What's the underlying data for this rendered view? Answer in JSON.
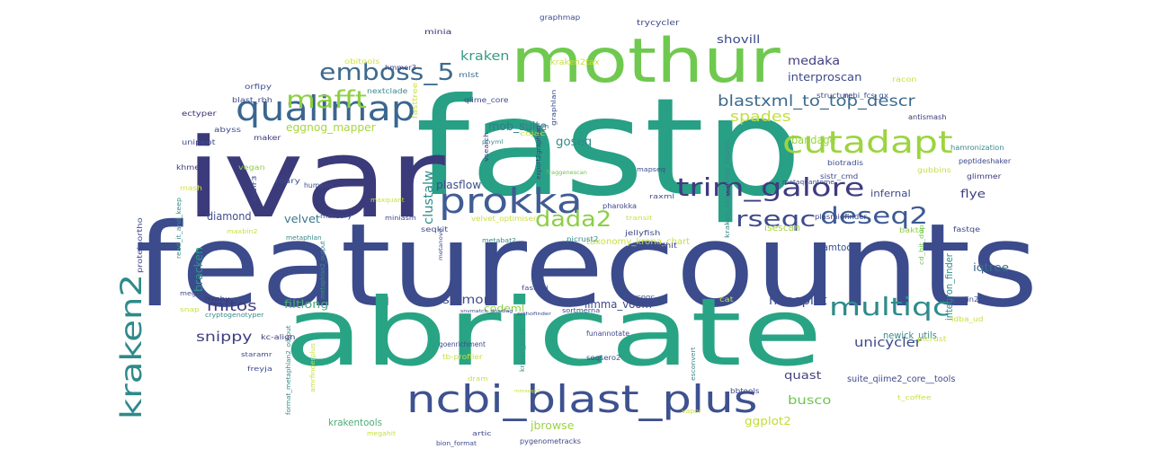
{
  "words": [
    {
      "text": "featurecounts",
      "color": "#3b4b8c"
    },
    {
      "text": "fastp",
      "color": "#27a085"
    },
    {
      "text": "ivar",
      "color": "#3b3a7a"
    },
    {
      "text": "abricate",
      "color": "#28a484"
    },
    {
      "text": "mothur",
      "color": "#6fc94f"
    },
    {
      "text": "ncbi_blast_plus",
      "color": "#3e5190"
    },
    {
      "text": "qualimap",
      "color": "#3a6690"
    },
    {
      "text": "prokka",
      "color": "#405c94"
    },
    {
      "text": "cutadapt",
      "color": "#9cd440"
    },
    {
      "text": "kraken2",
      "color": "#2e8a8a"
    },
    {
      "text": "trim_galore",
      "color": "#3f3b80"
    },
    {
      "text": "emboss_5",
      "color": "#3e6a8e"
    },
    {
      "text": "mafft",
      "color": "#8ecf43"
    },
    {
      "text": "dada2",
      "color": "#8dcf45"
    },
    {
      "text": "multiqc",
      "color": "#2e8b8a"
    },
    {
      "text": "deseq2",
      "color": "#3c5a94"
    },
    {
      "text": "rseqc",
      "color": "#3f4a8c"
    },
    {
      "text": "blastxml_to_top_descr",
      "color": "#3d6b8f"
    },
    {
      "text": "spades",
      "color": "#c4de3a"
    },
    {
      "text": "kraken",
      "color": "#3a9a86"
    },
    {
      "text": "medaka",
      "color": "#433e82"
    },
    {
      "text": "interproscan",
      "color": "#3e4a8a"
    },
    {
      "text": "shovill",
      "color": "#3c4c8c"
    },
    {
      "text": "mob_suite",
      "color": "#357b8c"
    },
    {
      "text": "eggnog_mapper",
      "color": "#a7d63e"
    },
    {
      "text": "clustalw",
      "color": "#2e8d8a"
    },
    {
      "text": "goseq",
      "color": "#2e8d8a"
    },
    {
      "text": "bandage",
      "color": "#9ad344"
    },
    {
      "text": "nanoplot",
      "color": "#3d4a8c"
    },
    {
      "text": "plasflow",
      "color": "#3c4e8c"
    },
    {
      "text": "diamond",
      "color": "#3f4c8c"
    },
    {
      "text": "velvet",
      "color": "#3b7a8c"
    },
    {
      "text": "mitos",
      "color": "#3f3a80"
    },
    {
      "text": "snippy",
      "color": "#3f3e82"
    },
    {
      "text": "salmon",
      "color": "#404a8a"
    },
    {
      "text": "codeml",
      "color": "#8ecf45"
    },
    {
      "text": "filtlong",
      "color": "#4aab7a"
    },
    {
      "text": "limma_voom",
      "color": "#3d4a8a"
    },
    {
      "text": "unicycler",
      "color": "#3e4a8c"
    },
    {
      "text": "quast",
      "color": "#46437f"
    },
    {
      "text": "busco",
      "color": "#6ec452"
    },
    {
      "text": "ggplot2",
      "color": "#c0dc3a"
    },
    {
      "text": "jbrowse",
      "color": "#9cd444"
    },
    {
      "text": "krakentools",
      "color": "#4dac78"
    },
    {
      "text": "bracken",
      "color": "#2a9a86"
    },
    {
      "text": "flye",
      "color": "#3c3f80"
    },
    {
      "text": "infernal",
      "color": "#3e4a8c"
    },
    {
      "text": "bamtools",
      "color": "#3a4f8c"
    },
    {
      "text": "isescan",
      "color": "#a8d63e"
    },
    {
      "text": "taxonomy_krona_chart",
      "color": "#c8df40"
    },
    {
      "text": "iqtree",
      "color": "#3d6b8f"
    },
    {
      "text": "integron_finder",
      "color": "#2e8f8a"
    },
    {
      "text": "newick_utils",
      "color": "#3b8a8a"
    },
    {
      "text": "suite_qiime2_core__tools",
      "color": "#3e4a8c"
    },
    {
      "text": "kraken2tax",
      "color": "#c8e040"
    },
    {
      "text": "graphmap",
      "color": "#3e4a8c"
    },
    {
      "text": "trycycler",
      "color": "#3c4a8c"
    },
    {
      "text": "minia",
      "color": "#3a2f70"
    },
    {
      "text": "obitools",
      "color": "#d4e240"
    },
    {
      "text": "hmmer3",
      "color": "#3a3f80"
    },
    {
      "text": "orfipy",
      "color": "#3a4f8c"
    },
    {
      "text": "blast_rbh",
      "color": "#3f4a8a"
    },
    {
      "text": "ectyper",
      "color": "#3a2f70"
    },
    {
      "text": "abyss",
      "color": "#3e4a8c"
    },
    {
      "text": "maker",
      "color": "#3a3a80"
    },
    {
      "text": "unipept",
      "color": "#3e4a8c"
    },
    {
      "text": "khmer",
      "color": "#3a3a7a"
    },
    {
      "text": "vegan",
      "color": "#8ecf45"
    },
    {
      "text": "mash",
      "color": "#d8e440"
    },
    {
      "text": "mlst",
      "color": "#3c6b8e"
    },
    {
      "text": "nextclade",
      "color": "#3b8a8a"
    },
    {
      "text": "fasttree",
      "color": "#c8df40"
    },
    {
      "text": "qiime_core",
      "color": "#3e4a8c"
    },
    {
      "text": "vsearch",
      "color": "#3f3a80"
    },
    {
      "text": "cojac",
      "color": "#c8df40"
    },
    {
      "text": "checkm",
      "color": "#3a8a8a"
    },
    {
      "text": "phyml",
      "color": "#3a8a8a"
    },
    {
      "text": "export2graphlan",
      "color": "#3a3f80"
    },
    {
      "text": "graphlan",
      "color": "#3e4a8c"
    },
    {
      "text": "fraggenescan",
      "color": "#6ec452"
    },
    {
      "text": "mapseq",
      "color": "#3e4a8c"
    },
    {
      "text": "kraken_taxonomy_report",
      "color": "#3a8a8a"
    },
    {
      "text": "antismash",
      "color": "#3a3a7a"
    },
    {
      "text": "structure",
      "color": "#3e4a8c"
    },
    {
      "text": "ncbi_fcs_gx",
      "color": "#3a4f8c"
    },
    {
      "text": "racon",
      "color": "#c8df40"
    },
    {
      "text": "hamronization",
      "color": "#3a8a8a"
    },
    {
      "text": "peptideshaker",
      "color": "#3e4a8c"
    },
    {
      "text": "biotradis",
      "color": "#3a4f8c"
    },
    {
      "text": "gubbins",
      "color": "#c8df40"
    },
    {
      "text": "sistr_cmd",
      "color": "#3e4a8c"
    },
    {
      "text": "glimmer",
      "color": "#3a3a7a"
    },
    {
      "text": "metaquantome",
      "color": "#3e4a8c"
    },
    {
      "text": "raxml",
      "color": "#3e4a8c"
    },
    {
      "text": "plasmidfinder",
      "color": "#3e4a8c"
    },
    {
      "text": "bakta",
      "color": "#8ecf45"
    },
    {
      "text": "fastqe",
      "color": "#3e4a8c"
    },
    {
      "text": "cd_hit_dup",
      "color": "#6ec452"
    },
    {
      "text": "proteinortho",
      "color": "#3e4a8c"
    },
    {
      "text": "read_it_and_keep",
      "color": "#3a8a8a"
    },
    {
      "text": "clair3",
      "color": "#3e4a8c"
    },
    {
      "text": "roary",
      "color": "#3a4f8c"
    },
    {
      "text": "humann",
      "color": "#3e4a8c"
    },
    {
      "text": "maxquant",
      "color": "#c8df40"
    },
    {
      "text": "mercury",
      "color": "#3e4a8c"
    },
    {
      "text": "miniasm",
      "color": "#3e4a8c"
    },
    {
      "text": "velvet_optimiser",
      "color": "#c8df40"
    },
    {
      "text": "maxbin2",
      "color": "#c8df40"
    },
    {
      "text": "transit",
      "color": "#c8df40"
    },
    {
      "text": "seqkit",
      "color": "#3e4a8c"
    },
    {
      "text": "metabat2",
      "color": "#3a8a8a"
    },
    {
      "text": "metanovo",
      "color": "#3e4a8c"
    },
    {
      "text": "metaphlan",
      "color": "#3a8a8a"
    },
    {
      "text": "metaphlan2_output",
      "color": "#3a8a8a"
    },
    {
      "text": "picrust2",
      "color": "#3a8a8a"
    },
    {
      "text": "jellyfish",
      "color": "#3e4a8c"
    },
    {
      "text": "cdhit",
      "color": "#3e4a8c"
    },
    {
      "text": "megan",
      "color": "#3e4a8c"
    },
    {
      "text": "hyphy",
      "color": "#3a3a7a"
    },
    {
      "text": "snap",
      "color": "#c8df40"
    },
    {
      "text": "cryptogenotyper",
      "color": "#3a8a8a"
    },
    {
      "text": "fastani",
      "color": "#3e4a8c"
    },
    {
      "text": "pycoqc",
      "color": "#3e4a8c"
    },
    {
      "text": "maaslin2",
      "color": "#3e4a8c"
    },
    {
      "text": "cat",
      "color": "#c8df40"
    },
    {
      "text": "idba_ud",
      "color": "#c8df40"
    },
    {
      "text": "sortmerna",
      "color": "#3e4a8c"
    },
    {
      "text": "snvmatch_dnadiag",
      "color": "#3e4a8c"
    },
    {
      "text": "orthofinder",
      "color": "#3e4a8c"
    },
    {
      "text": "kc-align",
      "color": "#3a3a7a"
    },
    {
      "text": "staramr",
      "color": "#3e4a8c"
    },
    {
      "text": "freyja",
      "color": "#3e4a8c"
    },
    {
      "text": "format_metaphlan2_output",
      "color": "#3a8a8a"
    },
    {
      "text": "amrfinderplus",
      "color": "#c8df40"
    },
    {
      "text": "goenrichment",
      "color": "#3e4a8c"
    },
    {
      "text": "tb-profiler",
      "color": "#c8df40"
    },
    {
      "text": "kraken_biom",
      "color": "#3a8a8a"
    },
    {
      "text": "funannotate",
      "color": "#3e4a8c"
    },
    {
      "text": "seqsero2",
      "color": "#3e4a8c"
    },
    {
      "text": "picrust",
      "color": "#c8df40"
    },
    {
      "text": "bbtools",
      "color": "#3e4a8c"
    },
    {
      "text": "mmseqs2",
      "color": "#c8df40"
    },
    {
      "text": "dram",
      "color": "#c8df40"
    },
    {
      "text": "megahit",
      "color": "#c8df40"
    },
    {
      "text": "artic",
      "color": "#3e4a8c"
    },
    {
      "text": "bion_format",
      "color": "#3e4a8c"
    },
    {
      "text": "pygenometracks",
      "color": "#3e4a8c"
    },
    {
      "text": "vapor",
      "color": "#c8df40"
    },
    {
      "text": "t_coffee",
      "color": "#c8df40"
    },
    {
      "text": "esconvert",
      "color": "#3a8a8a"
    },
    {
      "text": "pharokka",
      "color": "#3e4a8c"
    }
  ]
}
